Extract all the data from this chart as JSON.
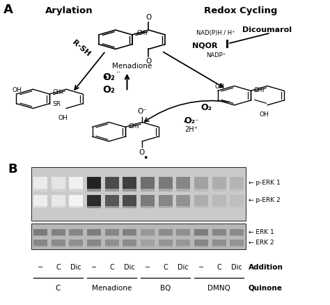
{
  "fig_width": 4.74,
  "fig_height": 4.38,
  "dpi": 100,
  "background": "#ffffff",
  "panel_A_label": "A",
  "panel_B_label": "B",
  "title_arylation": "Arylation",
  "title_redox": "Redox Cycling",
  "blot_top_label1": "← p-ERK 1",
  "blot_top_label2": "← p-ERK 2",
  "blot_bot_label1": "← ERK 1",
  "blot_bot_label2": "← ERK 2",
  "addition_label": "Addition",
  "quinone_label": "Quinone",
  "addition_ticks": [
    "−",
    "C",
    "Dic",
    "−",
    "C",
    "Dic",
    "−",
    "C",
    "Dic",
    "−",
    "C",
    "Dic"
  ],
  "quinone_groups": [
    "C",
    "Menadione",
    "BQ",
    "DMNQ"
  ],
  "nqor_label": "NQOR",
  "nadph_label": "NAD(P)H / H⁺",
  "nadp_label": "NADP⁺",
  "dicoumarol_label": "Dicoumarol",
  "menadione_label": "Menadione",
  "rsh_label": "R-SH",
  "perk1_intensities": [
    0.06,
    0.09,
    0.04,
    0.92,
    0.75,
    0.8,
    0.6,
    0.55,
    0.5,
    0.38,
    0.33,
    0.3
  ],
  "perk2_intensities": [
    0.05,
    0.08,
    0.03,
    0.88,
    0.7,
    0.75,
    0.55,
    0.5,
    0.45,
    0.33,
    0.28,
    0.26
  ],
  "erk1_intensities": [
    0.55,
    0.52,
    0.5,
    0.54,
    0.5,
    0.52,
    0.42,
    0.48,
    0.46,
    0.54,
    0.5,
    0.48
  ],
  "erk2_intensities": [
    0.5,
    0.48,
    0.46,
    0.5,
    0.46,
    0.48,
    0.38,
    0.44,
    0.42,
    0.5,
    0.46,
    0.44
  ],
  "blot_bg_top": "#d0d0d0",
  "blot_bg_bot": "#c0c0c0"
}
